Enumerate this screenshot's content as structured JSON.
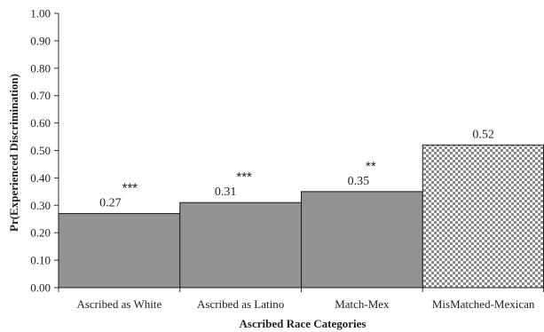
{
  "chart_data": {
    "type": "bar",
    "title": "",
    "xlabel": "Ascribed Race Categories",
    "ylabel": "Pr(Experienced Discrimination)",
    "ylim": [
      0,
      1
    ],
    "yticks": [
      "0.00",
      "0.10",
      "0.20",
      "0.30",
      "0.40",
      "0.50",
      "0.60",
      "0.70",
      "0.80",
      "0.90",
      "1.00"
    ],
    "grid": false,
    "categories": [
      "Ascribed as White",
      "Ascribed as Latino",
      "Match-Mex",
      "MisMatched-Mexican"
    ],
    "values": [
      0.27,
      0.31,
      0.35,
      0.52
    ],
    "value_labels": [
      "0.27",
      "0.31",
      "0.35",
      "0.52"
    ],
    "significance": [
      "***",
      "***",
      "**",
      ""
    ],
    "bar_fills": [
      "solid",
      "solid",
      "solid",
      "checkered"
    ],
    "colors": {
      "bar": "#939393",
      "bar_stroke": "#1a1a1a",
      "checker_dark": "#8a8a8a",
      "checker_light": "#ffffff",
      "axis": "#333333"
    }
  }
}
